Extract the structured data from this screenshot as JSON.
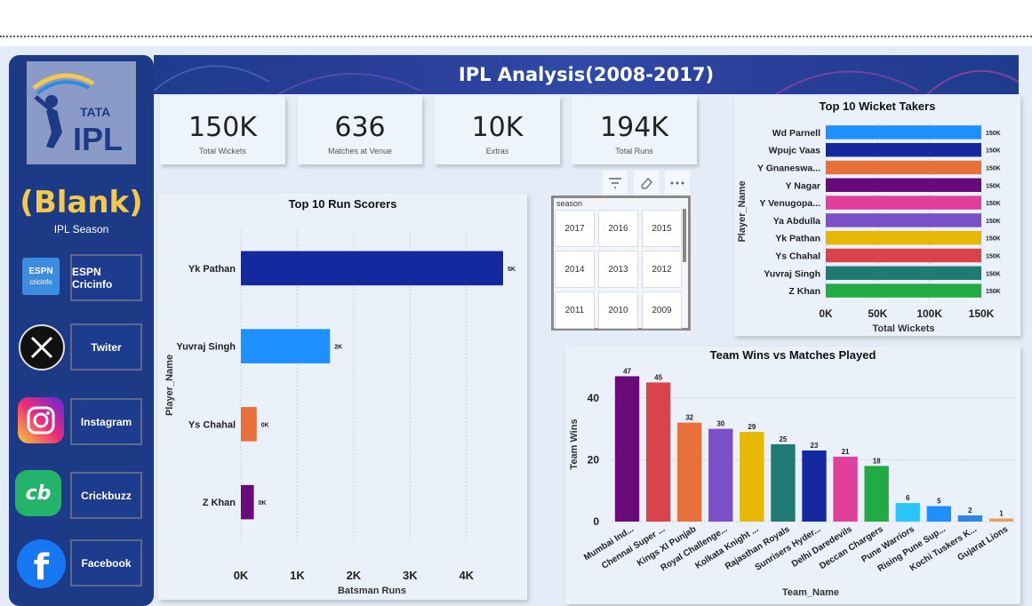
{
  "title": "IPL Analysis(2008-2017)",
  "sidebar": {
    "season_value": "(Blank)",
    "season_label": "IPL Season",
    "logo_text": "TATA IPL",
    "links": [
      {
        "label": "ESPN Cricinfo",
        "icon": "espn-cricinfo-icon",
        "icon_text": "cricinfo"
      },
      {
        "label": "Twiter",
        "icon": "x-twitter-icon"
      },
      {
        "label": "Instagram",
        "icon": "instagram-icon"
      },
      {
        "label": "Crickbuzz",
        "icon": "cricbuzz-icon",
        "icon_text": "cb"
      },
      {
        "label": "Facebook",
        "icon": "facebook-icon"
      }
    ]
  },
  "kpis": [
    {
      "value": "150K",
      "label": "Total Wickets"
    },
    {
      "value": "636",
      "label": "Matches at Venue"
    },
    {
      "value": "10K",
      "label": "Extras"
    },
    {
      "value": "194K",
      "label": "Total Runs"
    }
  ],
  "slicer": {
    "header": "season",
    "years": [
      "2017",
      "2016",
      "2015",
      "2014",
      "2013",
      "2012",
      "2011",
      "2010",
      "2009"
    ]
  },
  "colors": {
    "sidebar": "#1c3a86",
    "accent_yellow": "#f2c94c",
    "banner": "#2a3f9a"
  },
  "chart_data": [
    {
      "type": "bar",
      "orientation": "horizontal",
      "title": "Top 10 Run Scorers",
      "xlabel": "Batsman Runs",
      "ylabel": "Player_Name",
      "categories": [
        "Yk Pathan",
        "Yuvraj Singh",
        "Ys Chahal",
        "Z Khan"
      ],
      "values": [
        4650,
        1580,
        280,
        230
      ],
      "data_labels": [
        "5K",
        "2K",
        "0K",
        "0K"
      ],
      "colors": [
        "#1428a0",
        "#1e90ff",
        "#e8703a",
        "#6a0a7a"
      ],
      "xlim": [
        0,
        4650
      ],
      "xticks": [
        {
          "v": 0,
          "label": "0K"
        },
        {
          "v": 1000,
          "label": "1K"
        },
        {
          "v": 2000,
          "label": "2K"
        },
        {
          "v": 3000,
          "label": "3K"
        },
        {
          "v": 4000,
          "label": "4K"
        }
      ]
    },
    {
      "type": "bar",
      "orientation": "horizontal",
      "title": "Top 10 Wicket Takers",
      "xlabel": "Total Wickets",
      "ylabel": "Player_Name",
      "categories": [
        "Wd Parnell",
        "Wpujc Vaas",
        "Y Gnaneswa...",
        "Y Nagar",
        "Y Venugopa...",
        "Ya Abdulla",
        "Yk Pathan",
        "Ys Chahal",
        "Yuvraj Singh",
        "Z Khan"
      ],
      "values": [
        150000,
        150000,
        150000,
        150000,
        150000,
        150000,
        150000,
        150000,
        150000,
        150000
      ],
      "data_labels": [
        "150K",
        "150K",
        "150K",
        "150K",
        "150K",
        "150K",
        "150K",
        "150K",
        "150K",
        "150K"
      ],
      "colors": [
        "#1e90ff",
        "#1428a0",
        "#e8703a",
        "#6a0a7a",
        "#e0409a",
        "#7a4fc8",
        "#e6b800",
        "#d9434a",
        "#1f7a74",
        "#22aa44"
      ],
      "xlim": [
        0,
        150000
      ],
      "xticks": [
        {
          "v": 0,
          "label": "0K"
        },
        {
          "v": 50000,
          "label": "50K"
        },
        {
          "v": 100000,
          "label": "100K"
        },
        {
          "v": 150000,
          "label": "150K"
        }
      ]
    },
    {
      "type": "bar",
      "title": "Team Wins vs Matches Played",
      "xlabel": "Team_Name",
      "ylabel": "Team Wins",
      "categories": [
        "Mumbai Ind...",
        "Chennai Super ...",
        "Kings XI Punjab",
        "Royal Challenge...",
        "Kolkata Knight ...",
        "Rajasthan Royals",
        "Sunrisers Hyder...",
        "Delhi Daredevils",
        "Deccan Chargers",
        "Pune Warriors",
        "Rising Pune Sup...",
        "Kochi Tuskers K...",
        "Gujarat Lions"
      ],
      "values": [
        47,
        45,
        32,
        30,
        29,
        25,
        23,
        21,
        18,
        6,
        5,
        2,
        1
      ],
      "colors": [
        "#6a0a7a",
        "#d9434a",
        "#e8703a",
        "#7a4fc8",
        "#e6b800",
        "#1f7a74",
        "#1428a0",
        "#e0409a",
        "#22aa44",
        "#29c5f6",
        "#1e90ff",
        "#2e86de",
        "#f39c5a"
      ],
      "ylim": [
        0,
        50
      ],
      "yticks": [
        0,
        20,
        40
      ]
    }
  ]
}
